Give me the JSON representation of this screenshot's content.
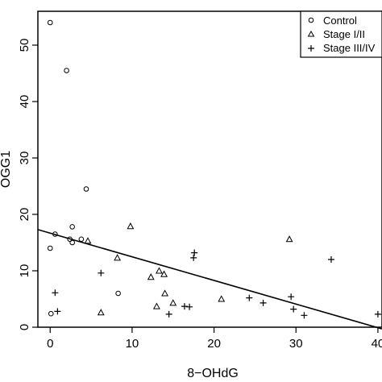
{
  "chart_data": {
    "type": "scatter",
    "title": "",
    "xlabel": "8−OHdG",
    "ylabel": "OGG1",
    "xlim": [
      -1.5,
      40.5
    ],
    "ylim": [
      0,
      56
    ],
    "xticks": [
      0,
      10,
      20,
      30,
      40
    ],
    "yticks": [
      0,
      10,
      20,
      30,
      40,
      50
    ],
    "xtick_labels": [
      "0",
      "10",
      "20",
      "30",
      "40"
    ],
    "ytick_labels": [
      "0",
      "10",
      "20",
      "30",
      "40",
      "50"
    ],
    "grid": false,
    "legend_position": "top-right",
    "series": [
      {
        "name": "Control",
        "marker": "circle",
        "points": [
          {
            "x": 0.0,
            "y": 54.0
          },
          {
            "x": 2.0,
            "y": 45.5
          },
          {
            "x": 4.4,
            "y": 24.5
          },
          {
            "x": 2.7,
            "y": 17.8
          },
          {
            "x": 0.6,
            "y": 16.5
          },
          {
            "x": 2.4,
            "y": 15.6
          },
          {
            "x": 2.7,
            "y": 15.0
          },
          {
            "x": 3.8,
            "y": 15.6
          },
          {
            "x": 0.0,
            "y": 14.0
          },
          {
            "x": 8.3,
            "y": 6.0
          },
          {
            "x": 0.1,
            "y": 2.4
          }
        ]
      },
      {
        "name": "Stage I/II",
        "marker": "triangle",
        "points": [
          {
            "x": 9.8,
            "y": 17.9
          },
          {
            "x": 4.6,
            "y": 15.3
          },
          {
            "x": 8.2,
            "y": 12.3
          },
          {
            "x": 13.3,
            "y": 10.0
          },
          {
            "x": 13.9,
            "y": 9.4
          },
          {
            "x": 12.3,
            "y": 8.9
          },
          {
            "x": 14.0,
            "y": 6.0
          },
          {
            "x": 15.0,
            "y": 4.3
          },
          {
            "x": 13.0,
            "y": 3.7
          },
          {
            "x": 6.2,
            "y": 2.6
          },
          {
            "x": 20.9,
            "y": 5.0
          },
          {
            "x": 29.2,
            "y": 15.6
          }
        ]
      },
      {
        "name": "Stage III/IV",
        "marker": "plus",
        "points": [
          {
            "x": 6.2,
            "y": 9.6
          },
          {
            "x": 0.6,
            "y": 6.1
          },
          {
            "x": 0.9,
            "y": 2.8
          },
          {
            "x": 17.6,
            "y": 13.2
          },
          {
            "x": 17.5,
            "y": 12.3
          },
          {
            "x": 34.3,
            "y": 12.0
          },
          {
            "x": 24.3,
            "y": 5.2
          },
          {
            "x": 29.4,
            "y": 5.4
          },
          {
            "x": 26.0,
            "y": 4.3
          },
          {
            "x": 16.4,
            "y": 3.7
          },
          {
            "x": 17.0,
            "y": 3.6
          },
          {
            "x": 14.5,
            "y": 2.3
          },
          {
            "x": 29.7,
            "y": 3.2
          },
          {
            "x": 31.0,
            "y": 2.1
          },
          {
            "x": 40.0,
            "y": 2.3
          }
        ]
      }
    ],
    "regression_line": {
      "x": [
        -1.5,
        40.5
      ],
      "y": [
        17.3,
        -0.3
      ]
    }
  }
}
